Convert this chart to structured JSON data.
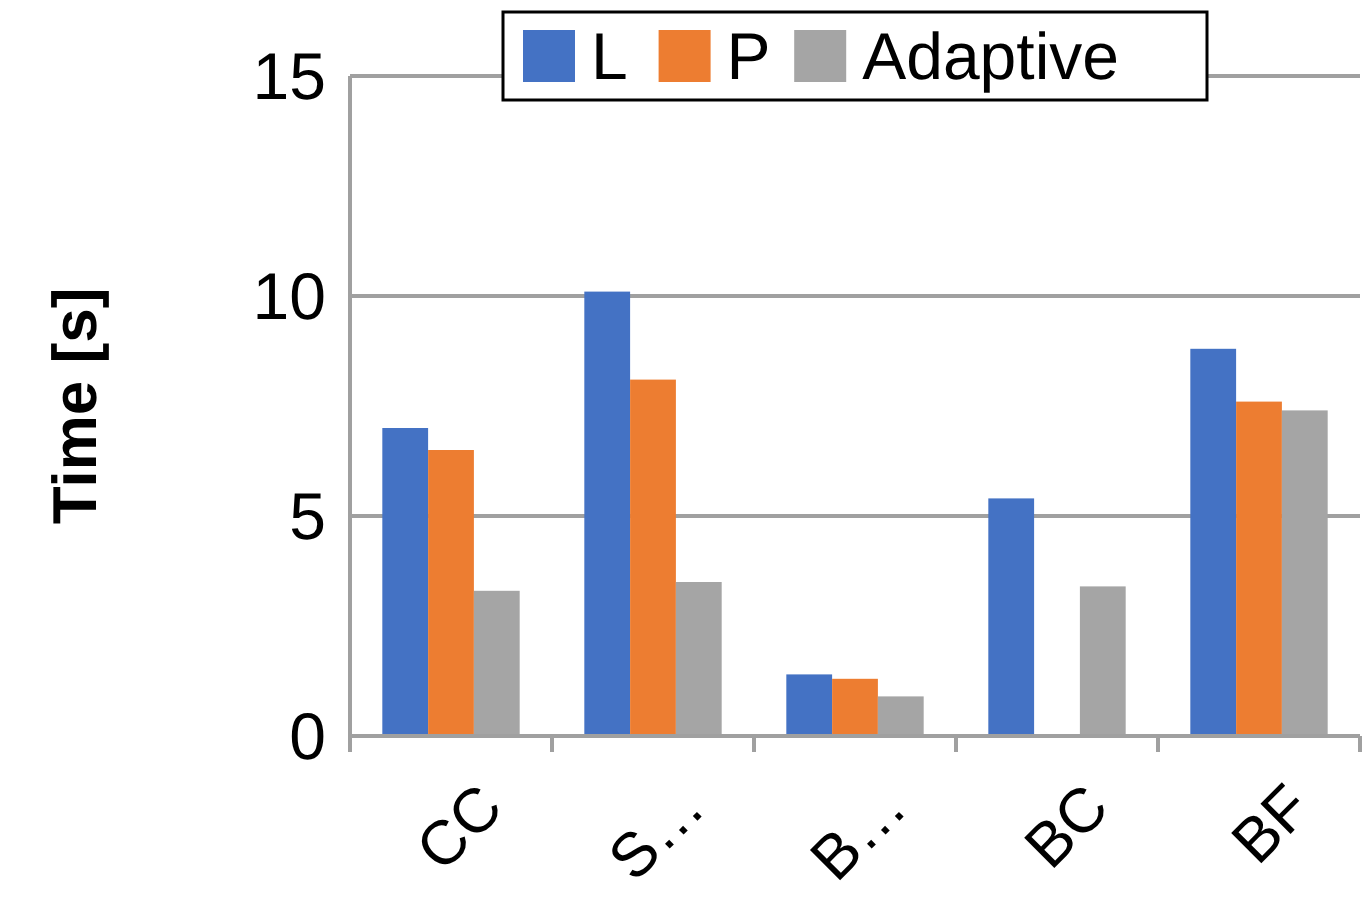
{
  "chart_data": {
    "type": "bar",
    "ylabel": "Time [s]",
    "categories": [
      "CC",
      "S…",
      "B…",
      "BC",
      "BF"
    ],
    "series": [
      {
        "name": "L",
        "color": "#4472c4",
        "values": [
          7.0,
          10.1,
          1.4,
          5.4,
          8.8
        ]
      },
      {
        "name": "P",
        "color": "#ed7d31",
        "values": [
          6.5,
          8.1,
          1.3,
          null,
          7.6
        ]
      },
      {
        "name": "Adaptive",
        "color": "#a5a5a5",
        "values": [
          3.3,
          3.5,
          0.9,
          3.4,
          7.4
        ]
      }
    ],
    "ylim": [
      0,
      15
    ],
    "yticks": [
      0,
      5,
      10,
      15
    ],
    "grid": "y",
    "legend": "top"
  }
}
